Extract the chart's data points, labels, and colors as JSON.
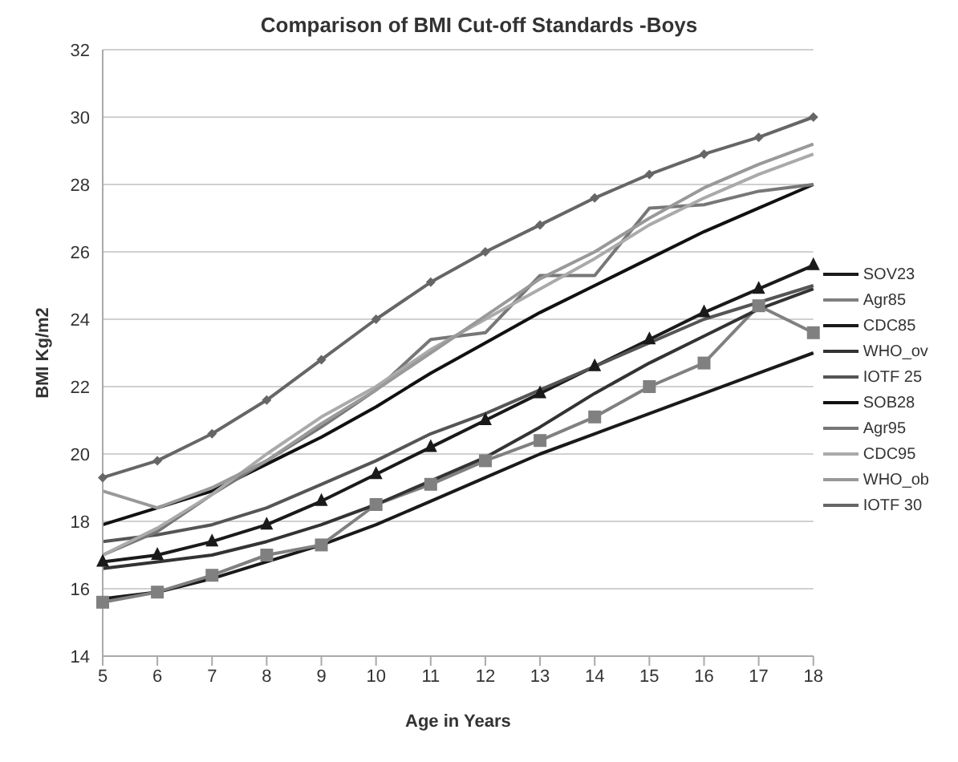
{
  "chart_data": {
    "type": "line",
    "title": "Comparison of BMI Cut-off Standards -Boys",
    "xlabel": "Age in Years",
    "ylabel": "BMI Kg/m2",
    "categories": [
      "5",
      "6",
      "7",
      "8",
      "9",
      "10",
      "11",
      "12",
      "13",
      "14",
      "15",
      "16",
      "17",
      "18"
    ],
    "ylim": [
      14,
      32
    ],
    "yticks": [
      14,
      16,
      18,
      20,
      22,
      24,
      26,
      28,
      30,
      32
    ],
    "grid": "y",
    "legend": "right",
    "series": [
      {
        "name": "SOV23",
        "color": "#1a1a1a",
        "marker": "none",
        "values": [
          15.7,
          15.9,
          16.3,
          16.8,
          17.3,
          17.9,
          18.6,
          19.3,
          20.0,
          20.6,
          21.2,
          21.8,
          22.4,
          23.0
        ]
      },
      {
        "name": "Agr85",
        "color": "#808080",
        "marker": "square",
        "values": [
          15.6,
          15.9,
          16.4,
          17.0,
          17.3,
          18.5,
          19.1,
          19.8,
          20.4,
          21.1,
          22.0,
          22.7,
          24.4,
          23.6
        ]
      },
      {
        "name": "CDC85",
        "color": "#1a1a1a",
        "marker": "triangle",
        "values": [
          16.8,
          17.0,
          17.4,
          17.9,
          18.6,
          19.4,
          20.2,
          21.0,
          21.8,
          22.6,
          23.4,
          24.2,
          24.9,
          25.6
        ]
      },
      {
        "name": "WHO_ov",
        "color": "#333333",
        "marker": "none",
        "values": [
          16.6,
          16.8,
          17.0,
          17.4,
          17.9,
          18.5,
          19.2,
          19.9,
          20.8,
          21.8,
          22.7,
          23.5,
          24.3,
          24.9
        ]
      },
      {
        "name": "IOTF 25",
        "color": "#555555",
        "marker": "none",
        "values": [
          17.4,
          17.6,
          17.9,
          18.4,
          19.1,
          19.8,
          20.6,
          21.2,
          21.9,
          22.6,
          23.3,
          24.0,
          24.5,
          25.0
        ]
      },
      {
        "name": "SOB28",
        "color": "#111111",
        "marker": "none",
        "values": [
          17.9,
          18.4,
          18.9,
          19.7,
          20.5,
          21.4,
          22.4,
          23.3,
          24.2,
          25.0,
          25.8,
          26.6,
          27.3,
          28.0
        ]
      },
      {
        "name": "Agr95",
        "color": "#777777",
        "marker": "none",
        "values": [
          17.0,
          17.7,
          18.8,
          19.8,
          20.8,
          21.9,
          23.4,
          23.6,
          25.3,
          25.3,
          27.3,
          27.4,
          27.8,
          28.0
        ]
      },
      {
        "name": "CDC95",
        "color": "#aaaaaa",
        "marker": "none",
        "values": [
          17.0,
          17.8,
          18.8,
          20.0,
          21.1,
          22.0,
          23.1,
          24.0,
          24.9,
          25.8,
          26.8,
          27.6,
          28.3,
          28.9
        ]
      },
      {
        "name": "WHO_ob",
        "color": "#999999",
        "marker": "none",
        "values": [
          18.9,
          18.4,
          19.0,
          19.8,
          20.9,
          21.9,
          23.0,
          24.1,
          25.2,
          26.0,
          27.0,
          27.9,
          28.6,
          29.2
        ]
      },
      {
        "name": "IOTF 30",
        "color": "#666666",
        "marker": "diamond",
        "values": [
          19.3,
          19.8,
          20.6,
          21.6,
          22.8,
          24.0,
          25.1,
          26.0,
          26.8,
          27.6,
          28.3,
          28.9,
          29.4,
          30.0
        ]
      }
    ]
  }
}
